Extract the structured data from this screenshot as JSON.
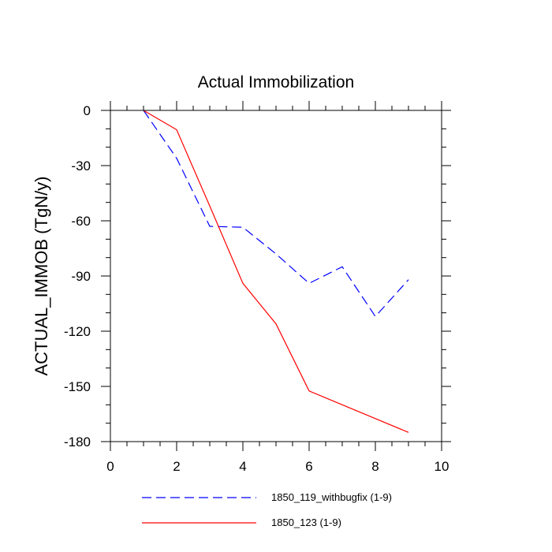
{
  "chart_data": {
    "type": "line",
    "title": "Actual Immobilization",
    "xlabel": "",
    "ylabel": "ACTUAL_IMMOB  (TgN/y)",
    "xlim": [
      0,
      10
    ],
    "ylim": [
      -180,
      0
    ],
    "x_ticks": [
      0,
      2,
      4,
      6,
      8,
      10
    ],
    "y_ticks": [
      0,
      -30,
      -60,
      -90,
      -120,
      -150,
      -180
    ],
    "x_tick_labels": [
      "0",
      "2",
      "4",
      "6",
      "8",
      "10"
    ],
    "y_tick_labels": [
      "0",
      "-30",
      "-60",
      "-90",
      "-120",
      "-150",
      "-180"
    ],
    "grid": false,
    "legend_position": "bottom",
    "x": [
      1,
      2,
      3,
      4,
      5,
      6,
      7,
      8,
      9
    ],
    "series": [
      {
        "name": "1850_119_withbugfix (1-9)",
        "color": "#0000ff",
        "style": "dashed",
        "values": [
          0,
          -26,
          -63,
          -63.5,
          -78,
          -94,
          -85,
          -112,
          -92
        ]
      },
      {
        "name": "1850_123 (1-9)",
        "color": "#ff0000",
        "style": "solid",
        "values": [
          0,
          -10.5,
          -52,
          -94,
          -116,
          -152.5,
          -160,
          -167.5,
          -175
        ]
      }
    ]
  }
}
